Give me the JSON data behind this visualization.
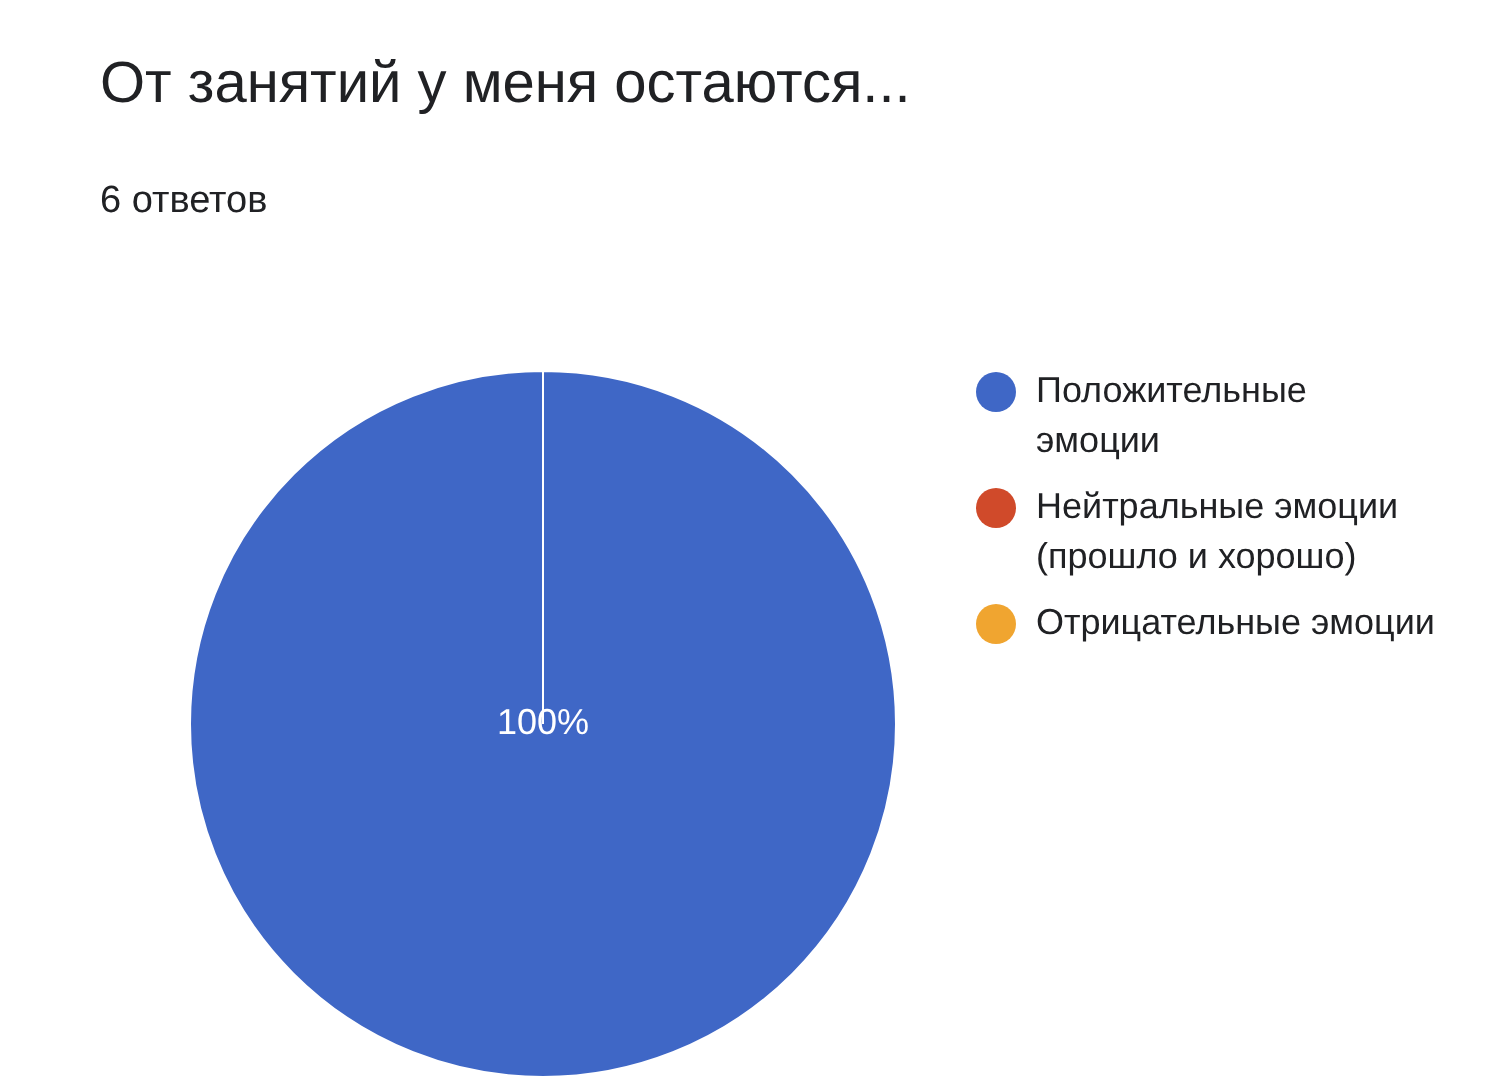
{
  "chart_data": {
    "type": "pie",
    "title": "От занятий у меня остаются...",
    "subtitle": "6 ответов",
    "categories": [
      "Положительные эмоции",
      "Нейтральные эмоции (прошло и хорошо)",
      "Отрицательные эмоции"
    ],
    "values": [
      100,
      0,
      0
    ],
    "colors": [
      "#3f67c6",
      "#d04a2a",
      "#f0a530"
    ],
    "value_labels": [
      "100%",
      null,
      null
    ],
    "legend": "right"
  }
}
